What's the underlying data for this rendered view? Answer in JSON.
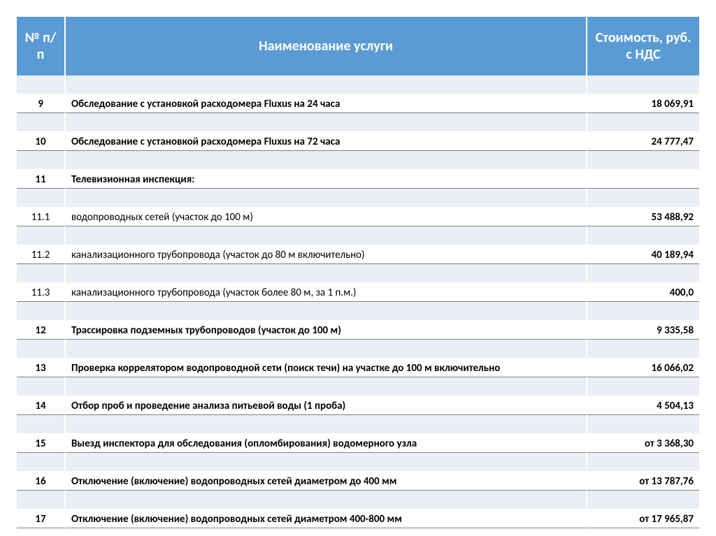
{
  "header": {
    "col_num": "№ п/п",
    "col_name": "Наименование услуги",
    "col_price": "Стоимость, руб. с НДС"
  },
  "rows": [
    {
      "num": "9",
      "name": "Обследование с установкой расходомера Fluxus на 24 часа",
      "price": "18 069,91",
      "bold": true
    },
    {
      "num": "10",
      "name": "Обследование с установкой расходомера Fluxus на 72 часа",
      "price": "24 777,47",
      "bold": true
    },
    {
      "num": "11",
      "name": "Телевизионная инспекция:",
      "price": "",
      "bold": true
    },
    {
      "num": "11.1",
      "name": "водопроводных сетей (участок до 100 м)",
      "price": "53 488,92",
      "bold": false
    },
    {
      "num": "11.2",
      "name": "канализационного трубопровода (участок до 80 м включительно)",
      "price": "40 189,94",
      "bold": false
    },
    {
      "num": "11.3",
      "name": "канализационного трубопровода (участок более 80 м, за 1 п.м.)",
      "price": "400,0",
      "bold": false
    },
    {
      "num": "12",
      "name": "Трассировка подземных трубопроводов (участок до 100 м)",
      "price": "9 335,58",
      "bold": true
    },
    {
      "num": "13",
      "name": "Проверка коррелятором водопроводной сети (поиск течи) на участке до 100 м включительно",
      "price": "16 066,02",
      "bold": true
    },
    {
      "num": "14",
      "name": "Отбор проб и проведение анализа питьевой воды (1 проба)",
      "price": "4 504,13",
      "bold": true
    },
    {
      "num": "15",
      "name": "Выезд инспектора для обследования (опломбирования) водомерного узла",
      "price": "от 3 368,30",
      "bold": true
    },
    {
      "num": "16",
      "name": "Отключение (включение) водопроводных сетей диаметром до 400 мм",
      "price": "от 13 787,76",
      "bold": true
    },
    {
      "num": "17",
      "name": "Отключение (включение) водопроводных сетей диаметром 400-800 мм",
      "price": "от 17 965,87",
      "bold": true
    }
  ],
  "style": {
    "header_bg": "#5b9bd5",
    "header_fg": "#ffffff",
    "spacer_bg": "#eaeff5",
    "row_border": "#7f7f7f",
    "header_fontsize": 20,
    "row_fontsize": 15
  }
}
